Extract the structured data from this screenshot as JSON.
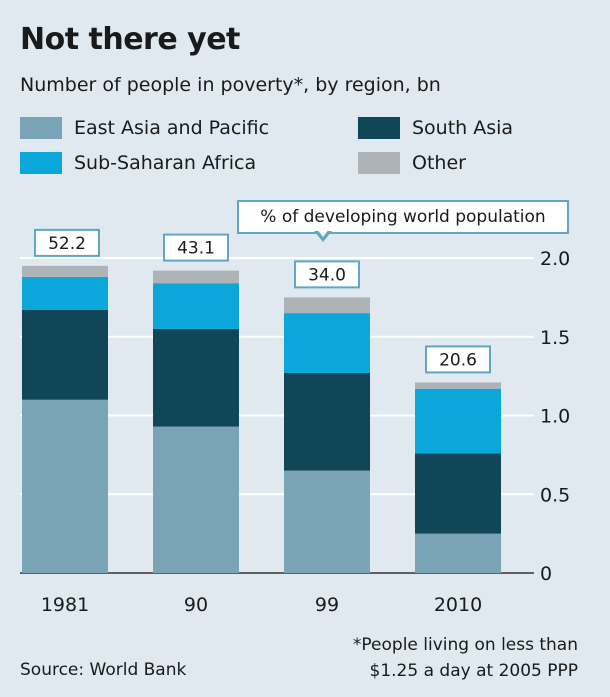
{
  "header": {
    "title": "Not there yet",
    "subtitle": "Number of people in poverty*, by region, bn"
  },
  "callout": {
    "text": "% of developing world population"
  },
  "footer": {
    "source": "Source: World Bank",
    "footnote_line1": "*People living on less than",
    "footnote_line2": "$1.25 a day at 2005 PPP"
  },
  "chart_data": {
    "type": "bar",
    "stacked": true,
    "categories": [
      "1981",
      "90",
      "99",
      "2010"
    ],
    "series": [
      {
        "name": "East Asia and Pacific",
        "color": "#7aa3b5",
        "values": [
          1.1,
          0.93,
          0.65,
          0.25
        ]
      },
      {
        "name": "South Asia",
        "color": "#0f4658",
        "values": [
          0.57,
          0.62,
          0.62,
          0.51
        ]
      },
      {
        "name": "Sub-Saharan Africa",
        "color": "#0ca7da",
        "values": [
          0.21,
          0.29,
          0.38,
          0.41
        ]
      },
      {
        "name": "Other",
        "color": "#adb3b6",
        "values": [
          0.07,
          0.08,
          0.1,
          0.04
        ]
      }
    ],
    "percent_labels": [
      "52.2",
      "43.1",
      "34.0",
      "20.6"
    ],
    "y_ticks": [
      "0",
      "0.5",
      "1.0",
      "1.5",
      "2.0"
    ],
    "ylim": [
      0,
      2.0
    ],
    "y_axis_side": "right",
    "grid": true,
    "legend_placement": "top"
  }
}
